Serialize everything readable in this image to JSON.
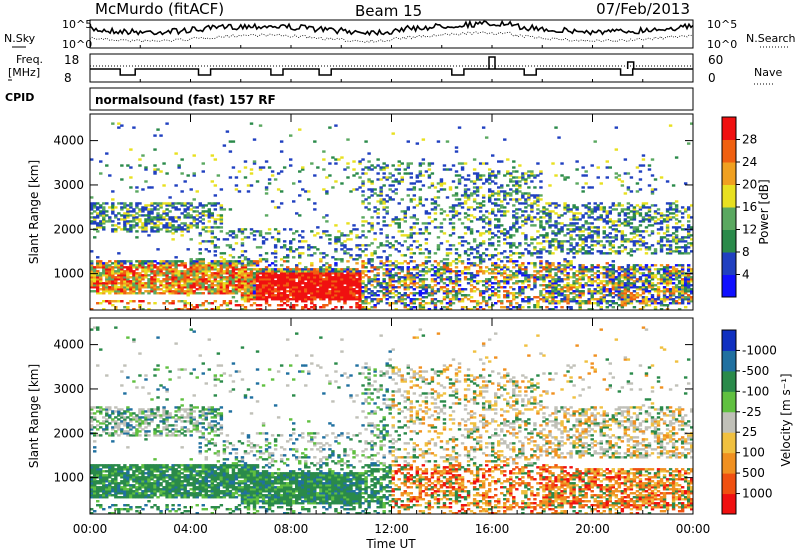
{
  "header": {
    "station": "McMurdo (fitACF)",
    "beam": "Beam 15",
    "date": "07/Feb/2013"
  },
  "noise_panel": {
    "left_label": "N.Sky",
    "left_ticks": [
      "10^5",
      "10^0"
    ],
    "right_label": "N.Search",
    "right_ticks": [
      "10^5",
      "10^0"
    ]
  },
  "freq_panel": {
    "left_label_line1": "Freq.",
    "left_label_line2": "[MHz]",
    "left_ticks": [
      "18",
      "8"
    ],
    "right_label": "Nave",
    "right_ticks": [
      "60",
      "0"
    ]
  },
  "cpid": {
    "label": "CPID",
    "value": "normalsound (fast) 157 RF"
  },
  "colors": {
    "power": [
      "#1010ff",
      "#2040c0",
      "#2a8a4a",
      "#5aa860",
      "#e8e020",
      "#f0a020",
      "#f06010",
      "#f01010"
    ],
    "velocity": [
      "#f01010",
      "#f05010",
      "#f09020",
      "#f0c040",
      "#c0c0b8",
      "#60c040",
      "#2a8a4a",
      "#2070a0",
      "#1030c0"
    ]
  },
  "chart_data": [
    {
      "type": "heatmap",
      "quantity": "Power",
      "ylabel": "Slant Range [km]",
      "ylim": [
        180,
        4600
      ],
      "yticks": [
        "1000",
        "2000",
        "3000",
        "4000"
      ],
      "xticks": [
        "00:00",
        "04:00",
        "08:00",
        "12:00",
        "16:00",
        "20:00",
        "00:00"
      ],
      "colorbar": {
        "label": "Power [dB]",
        "ticks": [
          "4",
          "8",
          "12",
          "16",
          "20",
          "24",
          "28"
        ]
      }
    },
    {
      "type": "heatmap",
      "quantity": "Velocity",
      "ylabel": "Slant Range [km]",
      "xlabel": "Time UT",
      "ylim": [
        180,
        4600
      ],
      "yticks": [
        "1000",
        "2000",
        "3000",
        "4000"
      ],
      "xticks": [
        "00:00",
        "04:00",
        "08:00",
        "12:00",
        "16:00",
        "20:00",
        "00:00"
      ],
      "colorbar": {
        "label": "Velocity [m s⁻¹]",
        "ticks": [
          "1000",
          "500",
          "100",
          "25",
          "-25",
          "-100",
          "-500",
          "-1000"
        ]
      }
    }
  ]
}
